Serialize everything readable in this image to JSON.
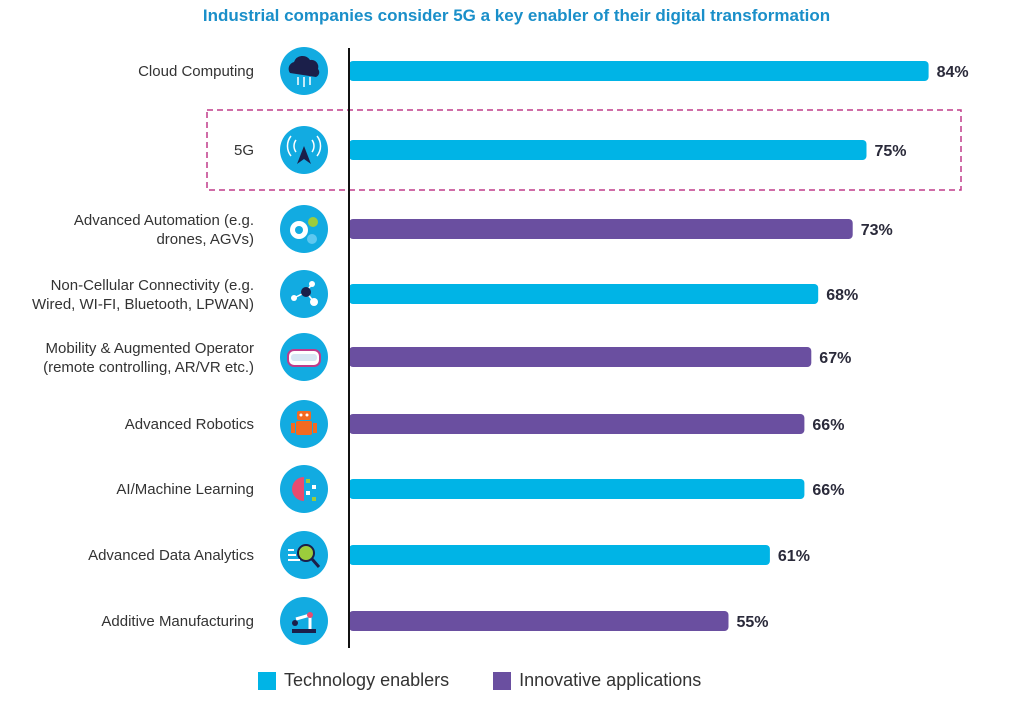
{
  "colors": {
    "title": "#1a8fc9",
    "technology": "#00b4e6",
    "innovative": "#6a4fa0",
    "icon_bg": "#12abe1",
    "highlight": "#c03b8a"
  },
  "chart_data": {
    "type": "bar",
    "orientation": "horizontal",
    "title": "Industrial companies consider 5G a key enabler of their digital transformation",
    "categories": [
      [
        "Cloud Computing"
      ],
      [
        "5G"
      ],
      [
        "Advanced Automation (e.g.",
        "drones, AGVs)"
      ],
      [
        "Non-Cellular Connectivity (e.g.",
        "Wired, WI-FI, Bluetooth, LPWAN)"
      ],
      [
        "Mobility & Augmented Operator",
        "(remote controlling, AR/VR etc.)"
      ],
      [
        "Advanced Robotics"
      ],
      [
        "AI/Machine Learning"
      ],
      [
        "Advanced Data Analytics"
      ],
      [
        "Additive Manufacturing"
      ]
    ],
    "values": [
      84,
      75,
      73,
      68,
      67,
      66,
      66,
      61,
      55
    ],
    "value_labels": [
      "84%",
      "75%",
      "73%",
      "68%",
      "67%",
      "66%",
      "66%",
      "61%",
      "55%"
    ],
    "series_membership": [
      "technology",
      "technology",
      "innovative",
      "technology",
      "innovative",
      "innovative",
      "technology",
      "technology",
      "innovative"
    ],
    "icons": [
      "cloud-icon",
      "antenna-signal-icon",
      "gears-icon",
      "network-nodes-icon",
      "vr-headset-icon",
      "robot-icon",
      "brain-circuit-icon",
      "magnifier-data-icon",
      "robotic-arm-icon"
    ],
    "highlighted_category": "5G",
    "legend": [
      {
        "key": "technology",
        "label": "Technology enablers"
      },
      {
        "key": "innovative",
        "label": "Innovative applications"
      }
    ],
    "xlim": [
      0,
      100
    ],
    "grid": false,
    "legend_position": "bottom"
  }
}
